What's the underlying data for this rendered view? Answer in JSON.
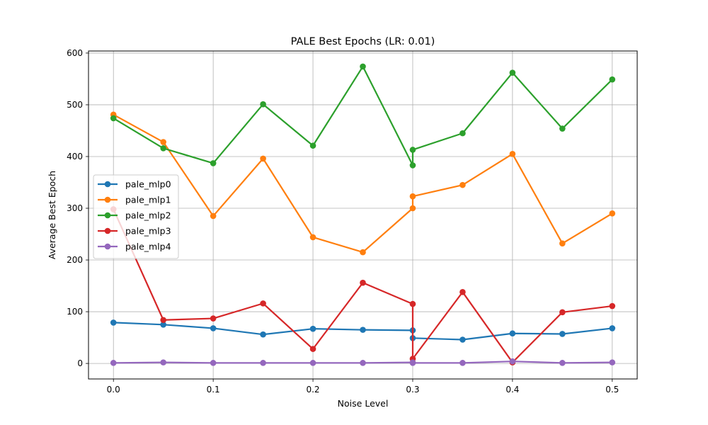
{
  "chart_data": {
    "type": "line",
    "title": "PALE Best Epochs (LR: 0.01)",
    "xlabel": "Noise Level",
    "ylabel": "Average Best Epoch",
    "xlim": [
      -0.025,
      0.525
    ],
    "ylim": [
      -30,
      604
    ],
    "x_ticks": [
      0.0,
      0.1,
      0.2,
      0.3,
      0.4,
      0.5
    ],
    "x_tick_labels": [
      "0.0",
      "0.1",
      "0.2",
      "0.3",
      "0.4",
      "0.5"
    ],
    "y_ticks": [
      0,
      100,
      200,
      300,
      400,
      500,
      600
    ],
    "y_tick_labels": [
      "0",
      "100",
      "200",
      "300",
      "400",
      "500",
      "600"
    ],
    "grid": true,
    "legend_position": "center-left",
    "series": [
      {
        "name": "pale_mlp0",
        "color": "#1f77b4",
        "x": [
          0.0,
          0.05,
          0.1,
          0.15,
          0.2,
          0.25,
          0.3,
          0.3,
          0.35,
          0.4,
          0.45,
          0.5
        ],
        "y": [
          79,
          75,
          68,
          56,
          67,
          65,
          64,
          49,
          46,
          58,
          57,
          68
        ]
      },
      {
        "name": "pale_mlp1",
        "color": "#ff7f0e",
        "x": [
          0.0,
          0.05,
          0.1,
          0.15,
          0.2,
          0.25,
          0.3,
          0.3,
          0.35,
          0.4,
          0.45,
          0.5
        ],
        "y": [
          481,
          428,
          285,
          396,
          244,
          215,
          300,
          323,
          345,
          405,
          232,
          290
        ]
      },
      {
        "name": "pale_mlp2",
        "color": "#2ca02c",
        "x": [
          0.0,
          0.05,
          0.1,
          0.15,
          0.2,
          0.25,
          0.3,
          0.3,
          0.35,
          0.4,
          0.45,
          0.5
        ],
        "y": [
          474,
          416,
          387,
          501,
          421,
          574,
          383,
          413,
          445,
          562,
          454,
          549
        ]
      },
      {
        "name": "pale_mlp3",
        "color": "#d62728",
        "x": [
          0.0,
          0.05,
          0.1,
          0.15,
          0.2,
          0.25,
          0.3,
          0.3,
          0.35,
          0.4,
          0.45,
          0.5
        ],
        "y": [
          298,
          84,
          87,
          116,
          28,
          156,
          115,
          9,
          138,
          2,
          99,
          111
        ]
      },
      {
        "name": "pale_mlp4",
        "color": "#9467bd",
        "x": [
          0.0,
          0.05,
          0.1,
          0.15,
          0.2,
          0.25,
          0.3,
          0.3,
          0.35,
          0.4,
          0.45,
          0.5
        ],
        "y": [
          1,
          2,
          1,
          1,
          1,
          1,
          2,
          1,
          1,
          4,
          1,
          2
        ]
      }
    ]
  }
}
